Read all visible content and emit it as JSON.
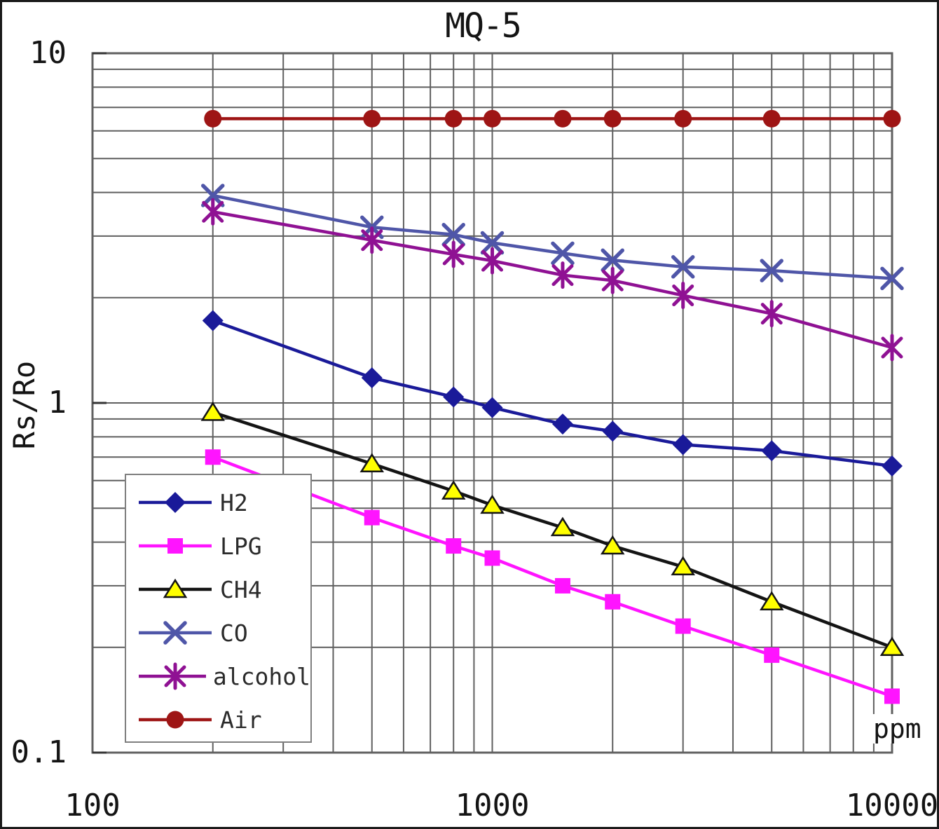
{
  "figure": {
    "title": "MQ-5",
    "y_axis_title": "Rs/Ro",
    "x_axis_unit": "ppm"
  },
  "axes": {
    "x_ticks": [
      {
        "value": 100,
        "label": "100"
      },
      {
        "value": 1000,
        "label": "1000"
      },
      {
        "value": 10000,
        "label": "10000"
      }
    ],
    "y_ticks": [
      {
        "value": 10,
        "label": "10"
      },
      {
        "value": 1,
        "label": "1"
      },
      {
        "value": 0.1,
        "label": "0.1"
      }
    ]
  },
  "chart_data": {
    "type": "line",
    "title": "MQ-5",
    "xlabel": "ppm",
    "ylabel": "Rs/Ro",
    "x_scale": "log",
    "y_scale": "log",
    "xlim": [
      100,
      10000
    ],
    "ylim": [
      0.1,
      10
    ],
    "grid": "log minor gridlines on, both axes",
    "legend_position": "lower-left boxed",
    "x": [
      200,
      500,
      800,
      1000,
      1500,
      2000,
      3000,
      5000,
      10000
    ],
    "series": [
      {
        "name": "H2",
        "color": "#1a1a99",
        "marker": "diamond",
        "values": [
          1.72,
          1.18,
          1.04,
          0.97,
          0.87,
          0.83,
          0.76,
          0.73,
          0.66
        ]
      },
      {
        "name": "LPG",
        "color": "#ff14ff",
        "marker": "square",
        "values": [
          0.7,
          0.47,
          0.39,
          0.36,
          0.3,
          0.27,
          0.23,
          0.19,
          0.145
        ]
      },
      {
        "name": "CH4",
        "color": "#141414",
        "marker": "triangle",
        "marker_fill": "#ffff00",
        "values": [
          0.94,
          0.67,
          0.56,
          0.51,
          0.44,
          0.39,
          0.34,
          0.27,
          0.2
        ]
      },
      {
        "name": "CO",
        "color": "#4f56a8",
        "marker": "x",
        "values": [
          3.92,
          3.18,
          3.03,
          2.87,
          2.68,
          2.56,
          2.45,
          2.39,
          2.27
        ]
      },
      {
        "name": "alcohol",
        "color": "#8f1193",
        "marker": "asterisk",
        "values": [
          3.52,
          2.92,
          2.66,
          2.55,
          2.32,
          2.24,
          2.03,
          1.8,
          1.44
        ]
      },
      {
        "name": "Air",
        "color": "#9e1515",
        "marker": "circle",
        "values": [
          6.5,
          6.5,
          6.5,
          6.5,
          6.5,
          6.5,
          6.5,
          6.5,
          6.5
        ]
      }
    ],
    "style": {
      "gridline_color": "#5f5f5f",
      "plot_border_color": "#606060",
      "line_width": 4.5
    }
  }
}
